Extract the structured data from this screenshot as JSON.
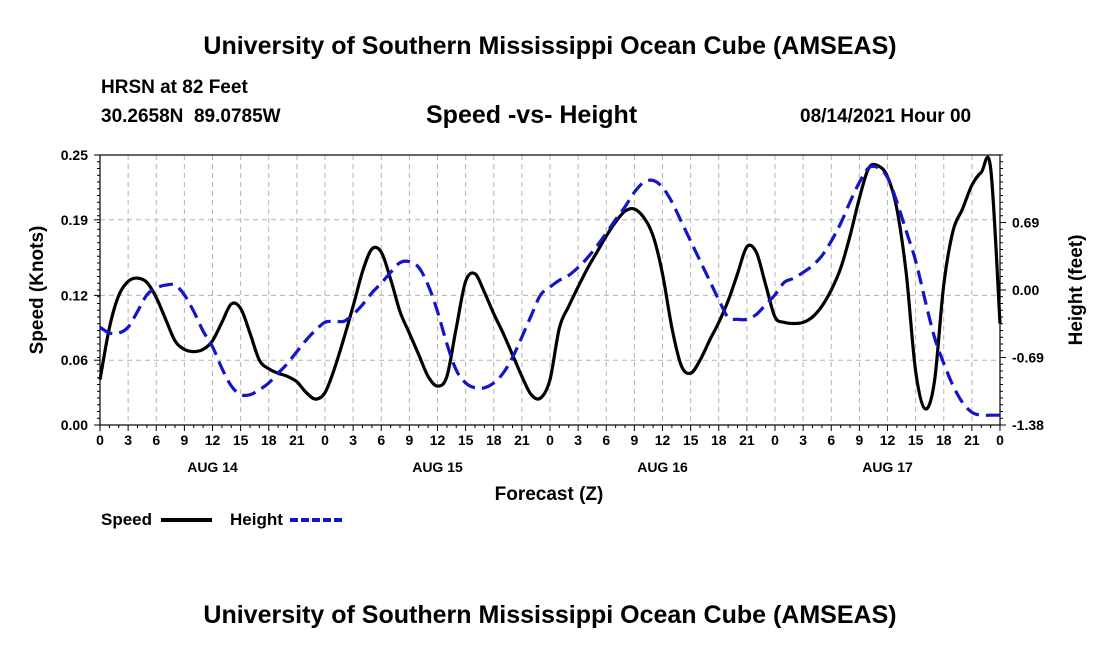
{
  "header": {
    "title": "University of Southern Mississippi Ocean Cube (AMSEAS)",
    "station": "HRSN at 82 Feet",
    "coords": "30.2658N  89.0785W",
    "subtitle": "Speed -vs- Height",
    "datetime": "08/14/2021 Hour 00"
  },
  "footer": {
    "title": "University of Southern Mississippi Ocean Cube (AMSEAS)"
  },
  "legend": {
    "speed_label": "Speed",
    "height_label": "Height"
  },
  "colors": {
    "speed": "#000000",
    "height": "#1414c8",
    "grid": "#b4b4b4"
  },
  "chart_data": {
    "type": "line",
    "title": "Speed -vs- Height",
    "xlabel": "Forecast (Z)",
    "ylabel": "Speed (Knots)",
    "y2label": "Height (feet)",
    "xlim": [
      0,
      96
    ],
    "ylim": [
      0.0,
      0.25
    ],
    "y2lim": [
      -1.38,
      1.38
    ],
    "grid": true,
    "legend_position": "bottom-left",
    "x_tick_positions": [
      0,
      3,
      6,
      9,
      12,
      15,
      18,
      21,
      24,
      27,
      30,
      33,
      36,
      39,
      42,
      45,
      48,
      51,
      54,
      57,
      60,
      63,
      66,
      69,
      72,
      75,
      78,
      81,
      84,
      87,
      90,
      93,
      96
    ],
    "x_tick_labels": [
      "0",
      "3",
      "6",
      "9",
      "12",
      "15",
      "18",
      "21",
      "0",
      "3",
      "6",
      "9",
      "12",
      "15",
      "18",
      "21",
      "0",
      "3",
      "6",
      "9",
      "12",
      "15",
      "18",
      "21",
      "0",
      "3",
      "6",
      "9",
      "12",
      "15",
      "18",
      "21",
      "0"
    ],
    "date_labels": [
      {
        "x": 12,
        "label": "AUG 14"
      },
      {
        "x": 36,
        "label": "AUG 15"
      },
      {
        "x": 60,
        "label": "AUG 16"
      },
      {
        "x": 84,
        "label": "AUG 17"
      }
    ],
    "y_ticks": [
      0.0,
      0.06,
      0.12,
      0.19,
      0.25
    ],
    "y_tick_labels": [
      "0.00",
      "0.06",
      "0.12",
      "0.19",
      "0.25"
    ],
    "y2_ticks": [
      -1.38,
      -0.69,
      0.0,
      0.69
    ],
    "y2_tick_labels": [
      "-1.38",
      "-0.69",
      "0.00",
      "0.69"
    ],
    "series": [
      {
        "name": "Speed",
        "axis": "left",
        "style": "solid",
        "x": [
          0,
          1,
          2,
          3,
          4,
          5,
          6,
          7,
          8,
          9,
          10,
          11,
          12,
          13,
          14,
          15,
          16,
          17,
          18,
          19,
          20,
          21,
          22,
          23,
          24,
          25,
          26,
          27,
          28,
          29,
          30,
          31,
          32,
          33,
          34,
          35,
          36,
          37,
          38,
          39,
          40,
          41,
          42,
          43,
          44,
          45,
          46,
          47,
          48,
          49,
          50,
          51,
          52,
          53,
          54,
          55,
          56,
          57,
          58,
          59,
          60,
          61,
          62,
          63,
          64,
          65,
          66,
          67,
          68,
          69,
          70,
          71,
          72,
          73,
          74,
          75,
          76,
          77,
          78,
          79,
          80,
          81,
          82,
          83,
          84,
          85,
          86,
          87,
          88,
          89,
          90,
          91,
          92,
          93,
          94,
          95,
          96
        ],
        "values": [
          0.042,
          0.09,
          0.12,
          0.133,
          0.136,
          0.132,
          0.118,
          0.098,
          0.078,
          0.07,
          0.068,
          0.07,
          0.078,
          0.095,
          0.112,
          0.108,
          0.085,
          0.06,
          0.052,
          0.048,
          0.045,
          0.04,
          0.03,
          0.024,
          0.03,
          0.052,
          0.08,
          0.11,
          0.142,
          0.163,
          0.16,
          0.135,
          0.105,
          0.085,
          0.065,
          0.045,
          0.036,
          0.045,
          0.09,
          0.133,
          0.14,
          0.123,
          0.103,
          0.085,
          0.065,
          0.045,
          0.028,
          0.025,
          0.042,
          0.09,
          0.11,
          0.128,
          0.145,
          0.16,
          0.175,
          0.188,
          0.198,
          0.2,
          0.192,
          0.175,
          0.14,
          0.09,
          0.055,
          0.048,
          0.06,
          0.078,
          0.095,
          0.115,
          0.14,
          0.165,
          0.16,
          0.13,
          0.1,
          0.095,
          0.094,
          0.095,
          0.1,
          0.11,
          0.125,
          0.145,
          0.175,
          0.21,
          0.238,
          0.24,
          0.23,
          0.2,
          0.14,
          0.05,
          0.015,
          0.04,
          0.13,
          0.18,
          0.2,
          0.222,
          0.234,
          0.238,
          0.094
        ]
      },
      {
        "name": "Height",
        "axis": "right",
        "style": "dashed",
        "x": [
          0,
          1,
          2,
          3,
          4,
          5,
          6,
          7,
          8,
          9,
          10,
          11,
          12,
          13,
          14,
          15,
          16,
          17,
          18,
          19,
          20,
          21,
          22,
          23,
          24,
          25,
          26,
          27,
          28,
          29,
          30,
          31,
          32,
          33,
          34,
          35,
          36,
          37,
          38,
          39,
          40,
          41,
          42,
          43,
          44,
          45,
          46,
          47,
          48,
          49,
          50,
          51,
          52,
          53,
          54,
          55,
          56,
          57,
          58,
          59,
          60,
          61,
          62,
          63,
          64,
          65,
          66,
          67,
          68,
          69,
          70,
          71,
          72,
          73,
          74,
          75,
          76,
          77,
          78,
          79,
          80,
          81,
          82,
          83,
          84,
          85,
          86,
          87,
          88,
          89,
          90,
          91,
          92,
          93,
          94,
          95,
          96
        ],
        "values": [
          -0.38,
          -0.44,
          -0.44,
          -0.38,
          -0.22,
          -0.05,
          0.02,
          0.05,
          0.05,
          -0.05,
          -0.22,
          -0.42,
          -0.58,
          -0.8,
          -0.98,
          -1.07,
          -1.07,
          -1.02,
          -0.95,
          -0.85,
          -0.75,
          -0.63,
          -0.51,
          -0.41,
          -0.33,
          -0.32,
          -0.32,
          -0.25,
          -0.15,
          -0.03,
          0.07,
          0.18,
          0.28,
          0.29,
          0.23,
          0.05,
          -0.22,
          -0.55,
          -0.82,
          -0.95,
          -1.0,
          -1.0,
          -0.95,
          -0.85,
          -0.69,
          -0.48,
          -0.26,
          -0.05,
          0.03,
          0.1,
          0.15,
          0.23,
          0.33,
          0.45,
          0.58,
          0.72,
          0.85,
          1.0,
          1.1,
          1.12,
          1.05,
          0.9,
          0.7,
          0.5,
          0.3,
          0.1,
          -0.1,
          -0.28,
          -0.3,
          -0.3,
          -0.25,
          -0.15,
          -0.05,
          0.08,
          0.12,
          0.18,
          0.25,
          0.35,
          0.5,
          0.68,
          0.9,
          1.1,
          1.25,
          1.25,
          1.15,
          0.9,
          0.6,
          0.3,
          -0.1,
          -0.48,
          -0.75,
          -0.98,
          -1.15,
          -1.25,
          -1.28,
          -1.28,
          -1.28
        ]
      }
    ]
  }
}
